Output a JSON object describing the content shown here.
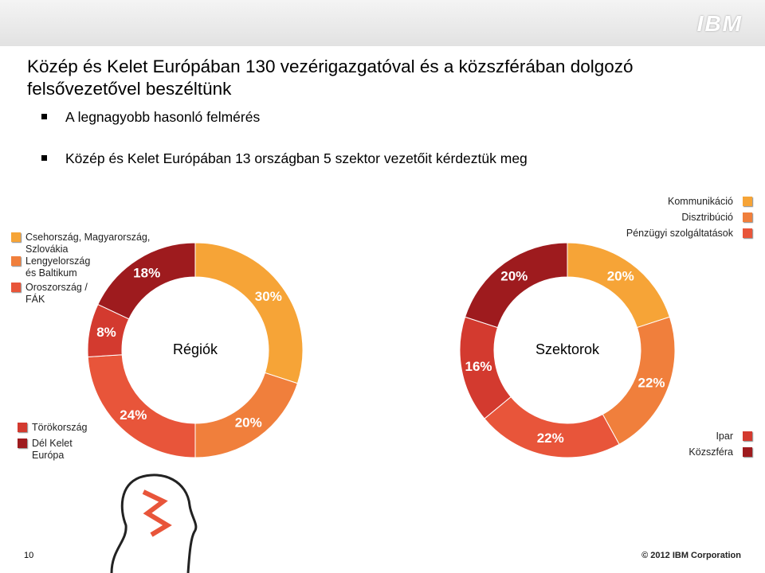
{
  "slide": {
    "logo": "IBM",
    "title": "Közép és Kelet Európában 130 vezérigazgatóval és a közszférában dolgozó felsővezetővel beszéltünk",
    "bullets": [
      "A legnagyobb hasonló felmérés",
      "Közép és Kelet Európában 13 országban 5 szektor vezetőit kérdeztük meg"
    ],
    "page_number": "10",
    "copyright": "© 2012 IBM Corporation"
  },
  "chart_data": [
    {
      "type": "donut",
      "title": "Régiók",
      "categories": [
        "Csehország, Magyarország, Szlovákia",
        "Lengyelország és Baltikum",
        "Oroszország / FÁK",
        "Törökország",
        "Dél Kelet Európa"
      ],
      "values": [
        30,
        20,
        24,
        8,
        18
      ],
      "value_labels": [
        "30%",
        "20%",
        "24%",
        "8%",
        "18%"
      ],
      "colors": [
        "#f6a437",
        "#f07f3c",
        "#e8553a",
        "#d33a2f",
        "#9e1b1e"
      ]
    },
    {
      "type": "donut",
      "title": "Szektorok",
      "categories": [
        "Kommunikáció",
        "Disztribúció",
        "Pénzügyi szolgáltatások",
        "Ipar",
        "Közszféra"
      ],
      "values": [
        20,
        22,
        22,
        16,
        20
      ],
      "value_labels": [
        "20%",
        "22%",
        "22%",
        "16%",
        "20%"
      ],
      "colors": [
        "#f6a437",
        "#f07f3c",
        "#e8553a",
        "#d33a2f",
        "#9e1b1e"
      ]
    }
  ]
}
